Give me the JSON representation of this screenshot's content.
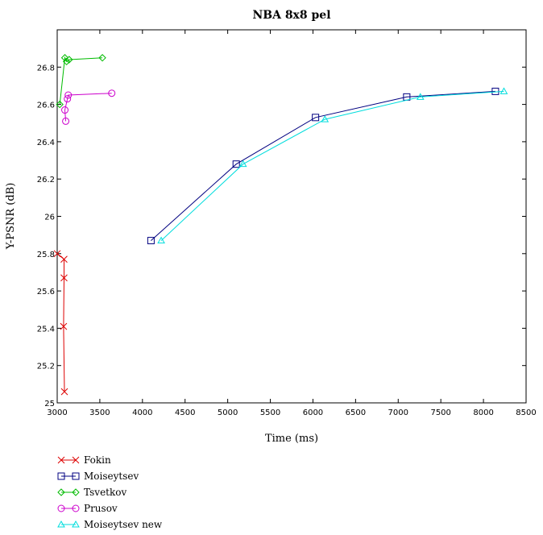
{
  "chart_data": {
    "type": "line",
    "title": "NBA 8x8 pel",
    "xlabel": "Time (ms)",
    "ylabel": "Y-PSNR (dB)",
    "xlim": [
      3000,
      8500
    ],
    "ylim": [
      25,
      27
    ],
    "x_ticks": [
      3000,
      3500,
      4000,
      4500,
      5000,
      5500,
      6000,
      6500,
      7000,
      7500,
      8000,
      8500
    ],
    "y_ticks": [
      25,
      25.2,
      25.4,
      25.6,
      25.8,
      26,
      26.2,
      26.4,
      26.6,
      26.8
    ],
    "x_tick_labels": [
      "3000",
      "3500",
      "4000",
      "4500",
      "5000",
      "5500",
      "6000",
      "6500",
      "7000",
      "7500",
      "8000",
      "8500"
    ],
    "y_tick_labels": [
      "25",
      "25.2",
      "25.4",
      "25.6",
      "25.8",
      "26",
      "26.2",
      "26.4",
      "26.6",
      "26.8"
    ],
    "grid": false,
    "legend_position": "bottom-left, below plot",
    "series": [
      {
        "name": "Fokin",
        "color": "#dd0000",
        "marker": "x",
        "points": [
          [
            3000,
            25.8
          ],
          [
            3080,
            25.77
          ],
          [
            3080,
            25.67
          ],
          [
            3075,
            25.41
          ],
          [
            3085,
            25.06
          ]
        ]
      },
      {
        "name": "Moiseytsev",
        "color": "#000080",
        "marker": "square",
        "points": [
          [
            4100,
            25.87
          ],
          [
            5100,
            26.28
          ],
          [
            6030,
            26.53
          ],
          [
            7100,
            26.64
          ],
          [
            8140,
            26.67
          ]
        ]
      },
      {
        "name": "Tsvetkov",
        "color": "#00bb00",
        "marker": "diamond",
        "points": [
          [
            3030,
            26.6
          ],
          [
            3090,
            26.85
          ],
          [
            3110,
            26.83
          ],
          [
            3140,
            26.84
          ],
          [
            3530,
            26.85
          ]
        ]
      },
      {
        "name": "Prusov",
        "color": "#cc00cc",
        "marker": "circle",
        "points": [
          [
            3100,
            26.51
          ],
          [
            3090,
            26.57
          ],
          [
            3120,
            26.63
          ],
          [
            3130,
            26.65
          ],
          [
            3640,
            26.66
          ]
        ]
      },
      {
        "name": "Moiseytsev new",
        "color": "#00dddd",
        "marker": "triangle",
        "points": [
          [
            4220,
            25.87
          ],
          [
            5180,
            26.28
          ],
          [
            6140,
            26.52
          ],
          [
            7260,
            26.64
          ],
          [
            8240,
            26.67
          ]
        ]
      }
    ]
  }
}
